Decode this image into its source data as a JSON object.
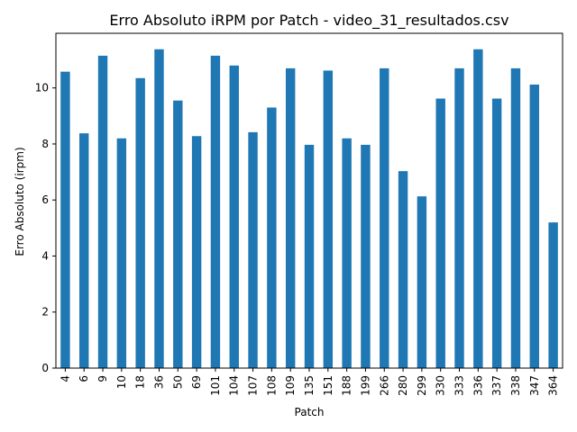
{
  "chart_data": {
    "type": "bar",
    "title": "Erro Absoluto iRPM por Patch - video_31_resultados.csv",
    "xlabel": "Patch",
    "ylabel": "Erro Absoluto (irpm)",
    "categories": [
      "4",
      "6",
      "9",
      "10",
      "18",
      "36",
      "50",
      "69",
      "101",
      "104",
      "107",
      "108",
      "109",
      "135",
      "151",
      "188",
      "199",
      "266",
      "280",
      "299",
      "330",
      "333",
      "336",
      "337",
      "338",
      "347",
      "364"
    ],
    "values": [
      10.58,
      8.38,
      11.15,
      8.2,
      10.35,
      11.38,
      9.55,
      8.28,
      11.15,
      10.8,
      8.42,
      9.3,
      10.7,
      7.97,
      10.62,
      8.2,
      7.97,
      10.7,
      7.03,
      6.13,
      9.62,
      10.7,
      11.38,
      9.62,
      10.7,
      10.12,
      5.2
    ],
    "ylim": [
      0,
      11.95
    ],
    "yticks": [
      0,
      2,
      4,
      6,
      8,
      10
    ],
    "grid": false,
    "bar_color": "#1f77b4"
  }
}
